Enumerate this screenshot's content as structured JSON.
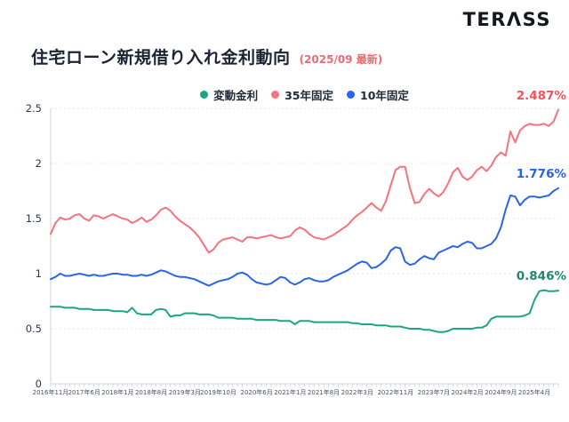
{
  "brand": {
    "logo_text": "TERΛSS"
  },
  "header": {
    "title": "住宅ローン新規借り入れ金利動向",
    "subtitle": "(2025/09 最新)"
  },
  "chart_data": {
    "type": "line",
    "title": "住宅ローン新規借り入れ金利動向",
    "xlabel": "",
    "ylabel": "",
    "ylim": [
      0,
      2.5
    ],
    "y_ticks": [
      0,
      0.5,
      1,
      1.5,
      2,
      2.5
    ],
    "y_tick_labels": [
      "0",
      "0.5",
      "1",
      "1.5",
      "2",
      "2.5"
    ],
    "grid": "horizontal-dashed",
    "legend_position": "top-center",
    "x_start": "2016-11",
    "x_end": "2025-09",
    "x_interval": "monthly",
    "x_tick_labels": [
      "2016年11月",
      "2017年6月",
      "2018年1月",
      "2018年8月",
      "2019年3月",
      "2019年10月",
      "2020年6月",
      "2021年1月",
      "2021年8月",
      "2022年3月",
      "2022年11月",
      "2023年7月",
      "2024年2月",
      "2024年9月",
      "2025年4月"
    ],
    "x_tick_months": [
      0,
      7,
      14,
      21,
      28,
      35,
      43,
      50,
      57,
      64,
      72,
      80,
      87,
      94,
      101
    ],
    "series": [
      {
        "name": "変動金利",
        "color": "#1ca584",
        "label_color": "#1d8a6b",
        "end_label": "0.846%",
        "values": [
          0.7,
          0.7,
          0.7,
          0.69,
          0.69,
          0.69,
          0.68,
          0.68,
          0.68,
          0.67,
          0.67,
          0.67,
          0.67,
          0.66,
          0.66,
          0.66,
          0.65,
          0.69,
          0.64,
          0.63,
          0.63,
          0.63,
          0.67,
          0.68,
          0.67,
          0.61,
          0.62,
          0.62,
          0.64,
          0.64,
          0.64,
          0.63,
          0.63,
          0.63,
          0.62,
          0.6,
          0.6,
          0.6,
          0.6,
          0.59,
          0.59,
          0.59,
          0.59,
          0.58,
          0.58,
          0.58,
          0.58,
          0.58,
          0.57,
          0.57,
          0.57,
          0.54,
          0.57,
          0.57,
          0.57,
          0.56,
          0.56,
          0.56,
          0.56,
          0.56,
          0.56,
          0.56,
          0.56,
          0.55,
          0.55,
          0.54,
          0.54,
          0.54,
          0.53,
          0.53,
          0.53,
          0.52,
          0.52,
          0.52,
          0.51,
          0.5,
          0.5,
          0.5,
          0.49,
          0.49,
          0.48,
          0.47,
          0.47,
          0.48,
          0.5,
          0.5,
          0.5,
          0.5,
          0.5,
          0.51,
          0.51,
          0.53,
          0.59,
          0.61,
          0.61,
          0.61,
          0.61,
          0.61,
          0.61,
          0.62,
          0.64,
          0.76,
          0.84,
          0.85,
          0.84,
          0.84,
          0.846
        ]
      },
      {
        "name": "35年固定",
        "color": "#f5737c",
        "label_color": "#f0545e",
        "end_label": "2.487%",
        "values": [
          1.36,
          1.46,
          1.51,
          1.49,
          1.5,
          1.53,
          1.54,
          1.5,
          1.48,
          1.53,
          1.52,
          1.5,
          1.52,
          1.54,
          1.52,
          1.5,
          1.49,
          1.46,
          1.48,
          1.51,
          1.47,
          1.49,
          1.53,
          1.58,
          1.6,
          1.57,
          1.52,
          1.48,
          1.45,
          1.42,
          1.38,
          1.33,
          1.26,
          1.19,
          1.22,
          1.28,
          1.31,
          1.32,
          1.33,
          1.31,
          1.29,
          1.33,
          1.33,
          1.32,
          1.33,
          1.34,
          1.35,
          1.33,
          1.32,
          1.33,
          1.34,
          1.39,
          1.42,
          1.4,
          1.36,
          1.33,
          1.32,
          1.31,
          1.33,
          1.35,
          1.38,
          1.41,
          1.44,
          1.49,
          1.53,
          1.56,
          1.6,
          1.64,
          1.6,
          1.57,
          1.66,
          1.8,
          1.94,
          1.97,
          1.97,
          1.78,
          1.64,
          1.65,
          1.72,
          1.77,
          1.73,
          1.7,
          1.74,
          1.82,
          1.92,
          1.96,
          1.88,
          1.85,
          1.88,
          1.94,
          1.97,
          1.93,
          1.98,
          2.06,
          2.1,
          2.07,
          2.29,
          2.19,
          2.3,
          2.34,
          2.36,
          2.35,
          2.35,
          2.36,
          2.34,
          2.38,
          2.487
        ]
      },
      {
        "name": "10年固定",
        "color": "#2a64e8",
        "label_color": "#2563e8",
        "end_label": "1.776%",
        "values": [
          0.95,
          0.97,
          1.0,
          0.98,
          0.98,
          0.99,
          1.0,
          0.99,
          0.98,
          0.99,
          0.98,
          0.98,
          0.99,
          1.0,
          1.0,
          0.99,
          0.99,
          0.98,
          0.98,
          0.99,
          0.98,
          0.99,
          1.01,
          1.03,
          1.02,
          1.0,
          0.98,
          0.97,
          0.97,
          0.96,
          0.95,
          0.93,
          0.91,
          0.89,
          0.91,
          0.93,
          0.94,
          0.95,
          0.97,
          1.0,
          1.01,
          0.99,
          0.95,
          0.92,
          0.91,
          0.9,
          0.91,
          0.94,
          0.97,
          0.96,
          0.92,
          0.9,
          0.92,
          0.95,
          0.96,
          0.94,
          0.93,
          0.93,
          0.94,
          0.97,
          0.99,
          1.01,
          1.03,
          1.06,
          1.09,
          1.11,
          1.1,
          1.05,
          1.06,
          1.09,
          1.13,
          1.21,
          1.24,
          1.23,
          1.11,
          1.08,
          1.09,
          1.13,
          1.16,
          1.14,
          1.13,
          1.19,
          1.21,
          1.23,
          1.25,
          1.24,
          1.27,
          1.29,
          1.28,
          1.23,
          1.23,
          1.25,
          1.27,
          1.32,
          1.42,
          1.58,
          1.71,
          1.7,
          1.62,
          1.67,
          1.7,
          1.7,
          1.69,
          1.7,
          1.71,
          1.75,
          1.776
        ]
      }
    ],
    "legend_order": [
      "変動金利",
      "35年固定",
      "10年固定"
    ]
  }
}
